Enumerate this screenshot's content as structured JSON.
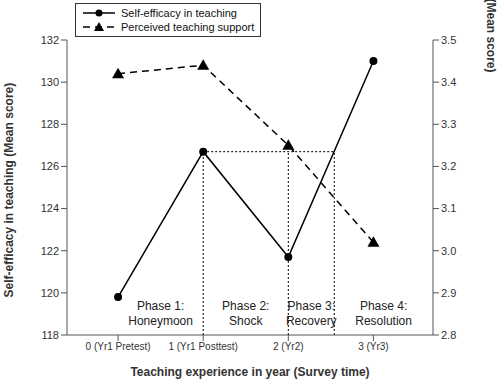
{
  "chart_data": {
    "type": "line",
    "x": [
      0,
      1,
      2,
      3
    ],
    "xlim": [
      -0.6,
      3.7
    ],
    "xticks": [
      {
        "value": 0,
        "label": "0 (Yr1 Pretest)"
      },
      {
        "value": 1,
        "label": "1 (Yr1 Posttest)"
      },
      {
        "value": 2,
        "label": "2 (Yr2)"
      },
      {
        "value": 3,
        "label": "3 (Yr3)"
      }
    ],
    "x_label": "Teaching experience in year (Survey time)",
    "y_label": "Self-efficacy in teaching (Mean score)",
    "y2_label": "Perceived teaching support (Mean score)",
    "ylim": [
      118,
      132
    ],
    "yticks": [
      118,
      120,
      122,
      124,
      126,
      128,
      130,
      132
    ],
    "y2lim": [
      2.8,
      3.5
    ],
    "y2ticks": [
      2.8,
      2.9,
      {
        "value": 3,
        "label": "3.0"
      },
      3.1,
      3.2,
      3.3,
      3.4,
      3.5
    ],
    "legend": "upper left",
    "series": [
      {
        "name": "Self-efficacy in teaching",
        "color": "#000000",
        "marker": "circle",
        "line_style": "solid",
        "values": [
          119.8,
          126.7,
          121.7,
          131.0
        ]
      },
      {
        "name": "Perceived teaching support",
        "color": "#000000",
        "marker": "triangle",
        "line_style": "dashed",
        "axis": "y2",
        "values": [
          3.42,
          3.44,
          3.25,
          3.02
        ]
      }
    ],
    "reference_segments": [
      {
        "x": [
          1,
          1
        ],
        "y": [
          118,
          126.7
        ]
      },
      {
        "x": [
          1,
          2.54
        ],
        "y": [
          126.7,
          126.7
        ]
      },
      {
        "x": [
          2,
          2
        ],
        "y": [
          118,
          126.7
        ]
      },
      {
        "x": [
          2.54,
          2.54
        ],
        "y": [
          118,
          126.7
        ]
      }
    ],
    "phases": [
      {
        "lines": [
          "Phase 1:",
          "Honeymoon"
        ],
        "xrange": [
          0,
          1
        ]
      },
      {
        "lines": [
          "Phase 2:",
          "Shock"
        ],
        "xrange": [
          1,
          2
        ]
      },
      {
        "lines": [
          "Phase 3:",
          "Recovery"
        ],
        "xrange": [
          2,
          2.54
        ]
      },
      {
        "lines": [
          "Phase 4:",
          "Resolution"
        ],
        "xrange": [
          2.54,
          3.7
        ]
      }
    ]
  }
}
